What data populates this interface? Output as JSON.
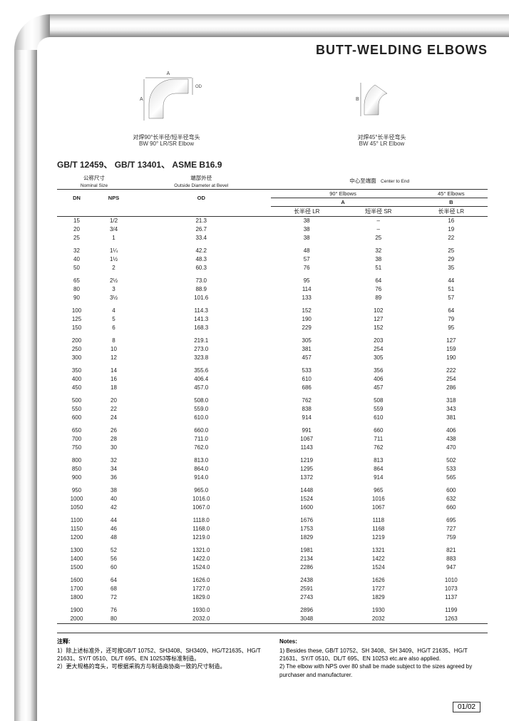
{
  "title": "BUTT-WELDING ELBOWS",
  "diagrams": {
    "left": {
      "cap_cn": "对焊90°长半径/短半径弯头",
      "cap_en": "BW 90° LR/SR Elbow"
    },
    "right": {
      "cap_cn": "对焊45°长半径弯头",
      "cap_en": "BW 45° LR Elbow"
    }
  },
  "standards": "GB/T 12459、 GB/T 13401、 ASME B16.9",
  "headers": {
    "nominal_cn": "公称尺寸",
    "nominal_en": "Nominal Size",
    "od_cn": "端部外径",
    "od_en": "Outside Diameter at Bevel",
    "center_cn": "中心至端面",
    "center_en": "Center to End",
    "dn": "DN",
    "nps": "NPS",
    "od": "OD",
    "e90": "90° Elbows",
    "e45": "45° Elbows",
    "a": "A",
    "b": "B",
    "lr_cn": "长半径 LR",
    "sr_cn": "短半径 SR",
    "lr2_cn": "长半径 LR"
  },
  "rows": [
    [
      "15",
      "1/2",
      "21.3",
      "38",
      "–",
      "16"
    ],
    [
      "20",
      "3/4",
      "26.7",
      "38",
      "–",
      "19"
    ],
    [
      "25",
      "1",
      "33.4",
      "38",
      "25",
      "22"
    ],
    [
      "32",
      "1¼",
      "42.2",
      "48",
      "32",
      "25"
    ],
    [
      "40",
      "1½",
      "48.3",
      "57",
      "38",
      "29"
    ],
    [
      "50",
      "2",
      "60.3",
      "76",
      "51",
      "35"
    ],
    [
      "65",
      "2½",
      "73.0",
      "95",
      "64",
      "44"
    ],
    [
      "80",
      "3",
      "88.9",
      "114",
      "76",
      "51"
    ],
    [
      "90",
      "3½",
      "101.6",
      "133",
      "89",
      "57"
    ],
    [
      "100",
      "4",
      "114.3",
      "152",
      "102",
      "64"
    ],
    [
      "125",
      "5",
      "141.3",
      "190",
      "127",
      "79"
    ],
    [
      "150",
      "6",
      "168.3",
      "229",
      "152",
      "95"
    ],
    [
      "200",
      "8",
      "219.1",
      "305",
      "203",
      "127"
    ],
    [
      "250",
      "10",
      "273.0",
      "381",
      "254",
      "159"
    ],
    [
      "300",
      "12",
      "323.8",
      "457",
      "305",
      "190"
    ],
    [
      "350",
      "14",
      "355.6",
      "533",
      "356",
      "222"
    ],
    [
      "400",
      "16",
      "406.4",
      "610",
      "406",
      "254"
    ],
    [
      "450",
      "18",
      "457.0",
      "686",
      "457",
      "286"
    ],
    [
      "500",
      "20",
      "508.0",
      "762",
      "508",
      "318"
    ],
    [
      "550",
      "22",
      "559.0",
      "838",
      "559",
      "343"
    ],
    [
      "600",
      "24",
      "610.0",
      "914",
      "610",
      "381"
    ],
    [
      "650",
      "26",
      "660.0",
      "991",
      "660",
      "406"
    ],
    [
      "700",
      "28",
      "711.0",
      "1067",
      "711",
      "438"
    ],
    [
      "750",
      "30",
      "762.0",
      "1143",
      "762",
      "470"
    ],
    [
      "800",
      "32",
      "813.0",
      "1219",
      "813",
      "502"
    ],
    [
      "850",
      "34",
      "864.0",
      "1295",
      "864",
      "533"
    ],
    [
      "900",
      "36",
      "914.0",
      "1372",
      "914",
      "565"
    ],
    [
      "950",
      "38",
      "965.0",
      "1448",
      "965",
      "600"
    ],
    [
      "1000",
      "40",
      "1016.0",
      "1524",
      "1016",
      "632"
    ],
    [
      "1050",
      "42",
      "1067.0",
      "1600",
      "1067",
      "660"
    ],
    [
      "1100",
      "44",
      "1118.0",
      "1676",
      "1118",
      "695"
    ],
    [
      "1150",
      "46",
      "1168.0",
      "1753",
      "1168",
      "727"
    ],
    [
      "1200",
      "48",
      "1219.0",
      "1829",
      "1219",
      "759"
    ],
    [
      "1300",
      "52",
      "1321.0",
      "1981",
      "1321",
      "821"
    ],
    [
      "1400",
      "56",
      "1422.0",
      "2134",
      "1422",
      "883"
    ],
    [
      "1500",
      "60",
      "1524.0",
      "2286",
      "1524",
      "947"
    ],
    [
      "1600",
      "64",
      "1626.0",
      "2438",
      "1626",
      "1010"
    ],
    [
      "1700",
      "68",
      "1727.0",
      "2591",
      "1727",
      "1073"
    ],
    [
      "1800",
      "72",
      "1829.0",
      "2743",
      "1829",
      "1137"
    ],
    [
      "1900",
      "76",
      "1930.0",
      "2896",
      "1930",
      "1199"
    ],
    [
      "2000",
      "80",
      "2032.0",
      "3048",
      "2032",
      "1263"
    ]
  ],
  "row_groups": [
    3,
    3,
    3,
    3,
    3,
    3,
    3,
    3,
    3,
    3,
    3,
    3,
    3,
    2
  ],
  "notes": {
    "left_title": "注释:",
    "left_items": [
      "1）除上述标准外，还可按GB/T 10752、SH3408、SH3409、HG/T21635、HG/T 21631、SY/T 0510、DL/T 695、EN 10253等标准制造。",
      "2）更大规格的弯头，可根据采购方与制造商协商一致的尺寸制造。"
    ],
    "right_title": "Notes:",
    "right_items": [
      "1)  Besides these, GB/T 10752、SH 3408、SH 3409、HG/T 21635、HG/T 21631、SY/T 0510、DL/T 695、EN 10253 etc.are also applied.",
      "2)  The elbow with NPS over 80 shall be made subject to the sizes agreed by purchaser and manufacturer."
    ]
  },
  "pagenum": "01/02",
  "colors": {
    "pipe_light": "#e8e8e8",
    "pipe_dark": "#888888",
    "text": "#222222",
    "line": "#333333"
  }
}
